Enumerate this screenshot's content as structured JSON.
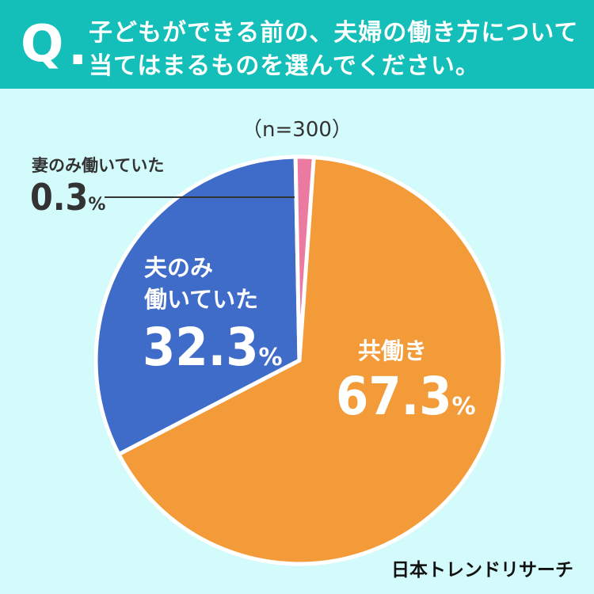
{
  "header": {
    "q_mark": "Q",
    "q_dot": ".",
    "question_line1": "子どもができる前の、夫婦の働き方について",
    "question_line2": "当てはまるものを選んでください。"
  },
  "sample": "（n=300）",
  "chart_data": {
    "type": "pie",
    "title": "子どもができる前の、夫婦の働き方について当てはまるものを選んでください。",
    "note": "（n=300）",
    "slices": [
      {
        "label": "共働き",
        "value": 67.3,
        "color": "#f29b38"
      },
      {
        "label": "夫のみ働いていた",
        "value": 32.3,
        "color": "#3f6cc8"
      },
      {
        "label": "妻のみ働いていた",
        "value": 0.3,
        "color": "#ec7aa0"
      }
    ],
    "unit": "%"
  },
  "labels": {
    "wife_cat": "妻のみ働いていた",
    "wife_num": "0.3",
    "husb_cat_line1": "夫のみ",
    "husb_cat_line2": "働いていた",
    "husb_num": "32.3",
    "both_cat": "共働き",
    "both_num": "67.3",
    "pct": "%"
  },
  "brand": "日本トレンドリサーチ"
}
